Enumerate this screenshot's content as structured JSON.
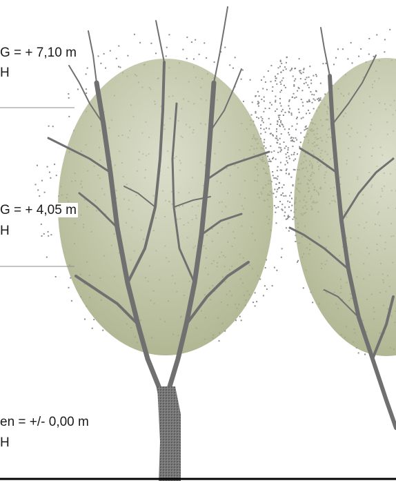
{
  "levels": [
    {
      "value": "G = + 7,10 m",
      "sub": "H"
    },
    {
      "value": "G = + 4,05 m",
      "sub": "H"
    },
    {
      "value": "en = +/- 0,00 m",
      "sub": "H"
    }
  ],
  "colors": {
    "crown_fill": "#a9b089",
    "crown_fill_light": "#cdd1b6",
    "branch": "#6f6f6f",
    "leader_line": "#8a8a8a",
    "ground_line": "#000000"
  }
}
